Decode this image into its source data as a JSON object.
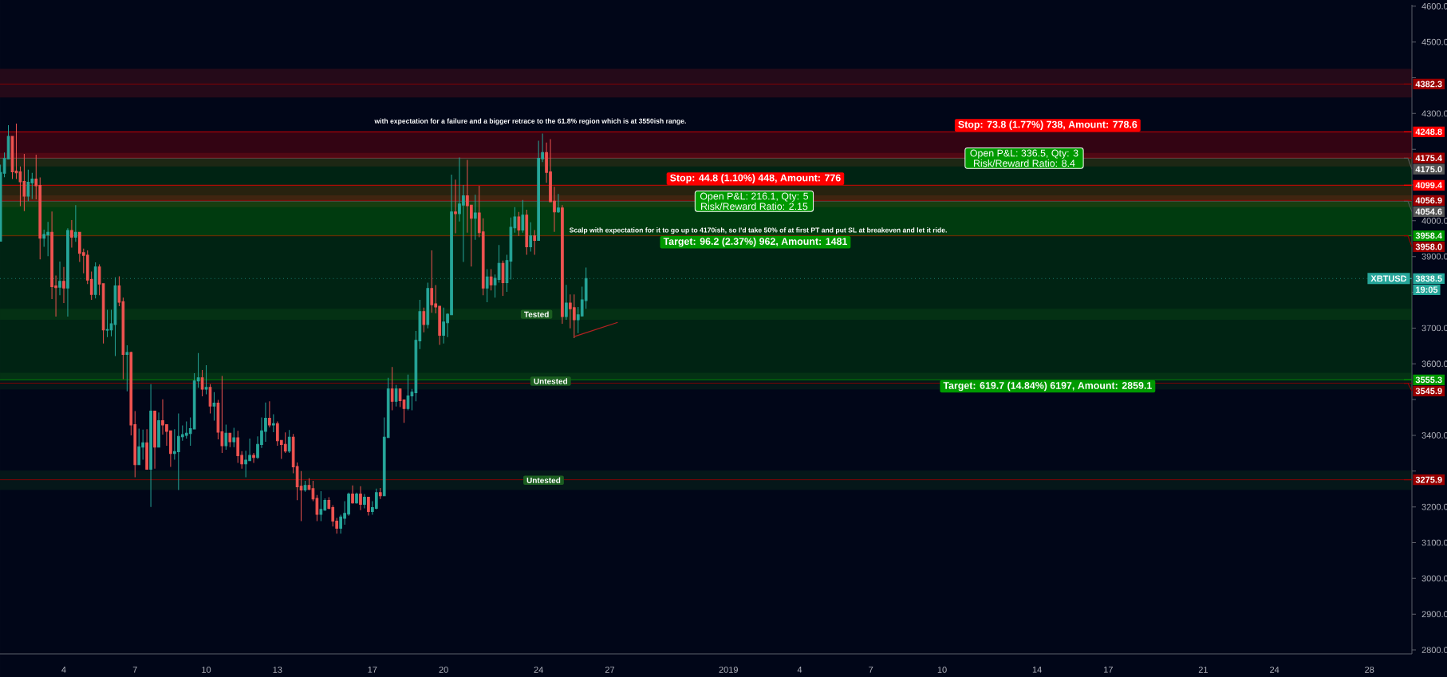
{
  "chart_data": {
    "type": "candlestick",
    "x": [
      "2018-12-01T08:00",
      "2018-12-01T12:00",
      "2018-12-01T16:00",
      "2018-12-01T20:00",
      "2018-12-02T00:00",
      "2018-12-02T04:00",
      "2018-12-02T08:00",
      "2018-12-02T12:00",
      "2018-12-02T16:00",
      "2018-12-02T20:00",
      "2018-12-03T00:00",
      "2018-12-03T04:00",
      "2018-12-03T08:00",
      "2018-12-03T12:00",
      "2018-12-03T16:00",
      "2018-12-03T20:00",
      "2018-12-04T00:00",
      "2018-12-04T04:00",
      "2018-12-04T08:00",
      "2018-12-04T12:00",
      "2018-12-04T16:00",
      "2018-12-04T20:00",
      "2018-12-05T00:00",
      "2018-12-05T04:00",
      "2018-12-05T08:00",
      "2018-12-05T12:00",
      "2018-12-05T16:00",
      "2018-12-05T20:00",
      "2018-12-06T00:00",
      "2018-12-06T04:00",
      "2018-12-06T08:00",
      "2018-12-06T12:00",
      "2018-12-06T16:00",
      "2018-12-06T20:00",
      "2018-12-07T00:00",
      "2018-12-07T04:00",
      "2018-12-07T08:00",
      "2018-12-07T12:00",
      "2018-12-07T16:00",
      "2018-12-07T20:00",
      "2018-12-08T00:00",
      "2018-12-08T04:00",
      "2018-12-08T08:00",
      "2018-12-08T12:00",
      "2018-12-08T16:00",
      "2018-12-08T20:00",
      "2018-12-09T00:00",
      "2018-12-09T04:00",
      "2018-12-09T08:00",
      "2018-12-09T12:00",
      "2018-12-09T16:00",
      "2018-12-09T20:00",
      "2018-12-10T00:00",
      "2018-12-10T04:00",
      "2018-12-10T08:00",
      "2018-12-10T12:00",
      "2018-12-10T16:00",
      "2018-12-10T20:00",
      "2018-12-11T00:00",
      "2018-12-11T04:00",
      "2018-12-11T08:00",
      "2018-12-11T12:00",
      "2018-12-11T16:00",
      "2018-12-11T20:00",
      "2018-12-12T00:00",
      "2018-12-12T04:00",
      "2018-12-12T08:00",
      "2018-12-12T12:00",
      "2018-12-12T16:00",
      "2018-12-12T20:00",
      "2018-12-13T00:00",
      "2018-12-13T04:00",
      "2018-12-13T08:00",
      "2018-12-13T12:00",
      "2018-12-13T16:00",
      "2018-12-13T20:00",
      "2018-12-14T00:00",
      "2018-12-14T04:00",
      "2018-12-14T08:00",
      "2018-12-14T12:00",
      "2018-12-14T16:00",
      "2018-12-14T20:00",
      "2018-12-15T00:00",
      "2018-12-15T04:00",
      "2018-12-15T08:00",
      "2018-12-15T12:00",
      "2018-12-15T16:00",
      "2018-12-15T20:00",
      "2018-12-16T00:00",
      "2018-12-16T04:00",
      "2018-12-16T08:00",
      "2018-12-16T12:00",
      "2018-12-16T16:00",
      "2018-12-16T20:00",
      "2018-12-17T00:00",
      "2018-12-17T04:00",
      "2018-12-17T08:00",
      "2018-12-17T12:00",
      "2018-12-17T16:00",
      "2018-12-17T20:00",
      "2018-12-18T00:00",
      "2018-12-18T04:00",
      "2018-12-18T08:00",
      "2018-12-18T12:00",
      "2018-12-18T16:00",
      "2018-12-18T20:00",
      "2018-12-19T00:00",
      "2018-12-19T04:00",
      "2018-12-19T08:00",
      "2018-12-19T12:00",
      "2018-12-19T16:00",
      "2018-12-19T20:00",
      "2018-12-20T00:00",
      "2018-12-20T04:00",
      "2018-12-20T08:00",
      "2018-12-20T12:00",
      "2018-12-20T16:00",
      "2018-12-20T20:00",
      "2018-12-21T00:00",
      "2018-12-21T04:00",
      "2018-12-21T08:00",
      "2018-12-21T12:00",
      "2018-12-21T16:00",
      "2018-12-21T20:00",
      "2018-12-22T00:00",
      "2018-12-22T04:00",
      "2018-12-22T08:00",
      "2018-12-22T12:00",
      "2018-12-22T16:00",
      "2018-12-22T20:00",
      "2018-12-23T00:00",
      "2018-12-23T04:00",
      "2018-12-23T08:00",
      "2018-12-23T12:00",
      "2018-12-23T16:00",
      "2018-12-23T20:00",
      "2018-12-24T00:00",
      "2018-12-24T04:00",
      "2018-12-24T08:00",
      "2018-12-24T12:00",
      "2018-12-24T16:00",
      "2018-12-24T20:00",
      "2018-12-25T00:00",
      "2018-12-25T04:00",
      "2018-12-25T08:00",
      "2018-12-25T12:00",
      "2018-12-25T16:00",
      "2018-12-25T20:00",
      "2018-12-26T00:00"
    ],
    "series": [
      {
        "name": "XBTUSD",
        "ohlc": [
          [
            3943,
            4157,
            3943,
            4135
          ],
          [
            4133,
            4191,
            4122,
            4174
          ],
          [
            4173,
            4267,
            4173,
            4236
          ],
          [
            4236,
            4236,
            4117,
            4137
          ],
          [
            4139,
            4272,
            4117,
            4134
          ],
          [
            4137,
            4152,
            4041,
            4109
          ],
          [
            4110,
            4187,
            4027,
            4069
          ],
          [
            4069,
            4143,
            4055,
            4108
          ],
          [
            4106,
            4134,
            4061,
            4117
          ],
          [
            4117,
            4185,
            4060,
            4098
          ],
          [
            4099,
            4121,
            3892,
            3951
          ],
          [
            3951,
            3975,
            3927,
            3962
          ],
          [
            3960,
            3997,
            3901,
            3968
          ],
          [
            3968,
            4026,
            3781,
            3816
          ],
          [
            3818,
            3847,
            3732,
            3813
          ],
          [
            3814,
            3886,
            3792,
            3831
          ],
          [
            3831,
            3871,
            3770,
            3812
          ],
          [
            3812,
            3979,
            3732,
            3973
          ],
          [
            3973,
            4002,
            3925,
            3954
          ],
          [
            3954,
            4044,
            3941,
            3968
          ],
          [
            3968,
            3968,
            3885,
            3909
          ],
          [
            3911,
            3922,
            3853,
            3903
          ],
          [
            3904,
            3917,
            3823,
            3834
          ],
          [
            3836,
            3858,
            3779,
            3794
          ],
          [
            3794,
            3884,
            3783,
            3871
          ],
          [
            3871,
            3878,
            3792,
            3823
          ],
          [
            3824,
            3824,
            3657,
            3695
          ],
          [
            3694,
            3751,
            3675,
            3696
          ],
          [
            3695,
            3751,
            3677,
            3712
          ],
          [
            3710,
            3842,
            3622,
            3818
          ],
          [
            3818,
            3845,
            3761,
            3772
          ],
          [
            3774,
            3785,
            3557,
            3626
          ],
          [
            3626,
            3652,
            3523,
            3632
          ],
          [
            3632,
            3634,
            3400,
            3429
          ],
          [
            3430,
            3468,
            3283,
            3318
          ],
          [
            3318,
            3419,
            3318,
            3368
          ],
          [
            3367,
            3416,
            3332,
            3379
          ],
          [
            3379,
            3417,
            3305,
            3305
          ],
          [
            3305,
            3543,
            3200,
            3468
          ],
          [
            3468,
            3468,
            3307,
            3367
          ],
          [
            3367,
            3464,
            3367,
            3441
          ],
          [
            3441,
            3501,
            3402,
            3429
          ],
          [
            3430,
            3430,
            3371,
            3411
          ],
          [
            3413,
            3413,
            3312,
            3349
          ],
          [
            3349,
            3417,
            3332,
            3355
          ],
          [
            3354,
            3461,
            3247,
            3397
          ],
          [
            3396,
            3428,
            3385,
            3402
          ],
          [
            3400,
            3439,
            3391,
            3406
          ],
          [
            3405,
            3450,
            3371,
            3419
          ],
          [
            3418,
            3574,
            3418,
            3552
          ],
          [
            3552,
            3630,
            3533,
            3561
          ],
          [
            3561,
            3583,
            3509,
            3529
          ],
          [
            3529,
            3596,
            3515,
            3534
          ],
          [
            3534,
            3543,
            3461,
            3482
          ],
          [
            3482,
            3521,
            3441,
            3490
          ],
          [
            3490,
            3499,
            3389,
            3409
          ],
          [
            3410,
            3566,
            3351,
            3371
          ],
          [
            3371,
            3430,
            3360,
            3406
          ],
          [
            3406,
            3406,
            3367,
            3382
          ],
          [
            3382,
            3421,
            3367,
            3393
          ],
          [
            3393,
            3413,
            3323,
            3343
          ],
          [
            3344,
            3356,
            3307,
            3320
          ],
          [
            3320,
            3357,
            3283,
            3331
          ],
          [
            3329,
            3391,
            3329,
            3344
          ],
          [
            3344,
            3351,
            3323,
            3338
          ],
          [
            3338,
            3397,
            3334,
            3375
          ],
          [
            3374,
            3450,
            3365,
            3413
          ],
          [
            3411,
            3492,
            3382,
            3448
          ],
          [
            3448,
            3495,
            3422,
            3429
          ],
          [
            3429,
            3459,
            3409,
            3433
          ],
          [
            3433,
            3439,
            3371,
            3385
          ],
          [
            3386,
            3386,
            3334,
            3374
          ],
          [
            3375,
            3408,
            3351,
            3356
          ],
          [
            3356,
            3415,
            3351,
            3395
          ],
          [
            3395,
            3404,
            3294,
            3312
          ],
          [
            3313,
            3324,
            3219,
            3256
          ],
          [
            3258,
            3300,
            3160,
            3247
          ],
          [
            3247,
            3273,
            3242,
            3260
          ],
          [
            3260,
            3280,
            3247,
            3249
          ],
          [
            3251,
            3273,
            3216,
            3222
          ],
          [
            3224,
            3233,
            3160,
            3179
          ],
          [
            3179,
            3244,
            3160,
            3193
          ],
          [
            3191,
            3224,
            3189,
            3218
          ],
          [
            3218,
            3227,
            3193,
            3196
          ],
          [
            3198,
            3205,
            3145,
            3160
          ],
          [
            3160,
            3169,
            3125,
            3140
          ],
          [
            3140,
            3178,
            3125,
            3172
          ],
          [
            3168,
            3216,
            3150,
            3182
          ],
          [
            3180,
            3240,
            3175,
            3236
          ],
          [
            3236,
            3260,
            3209,
            3211
          ],
          [
            3211,
            3240,
            3209,
            3236
          ],
          [
            3236,
            3258,
            3191,
            3207
          ],
          [
            3207,
            3236,
            3196,
            3227
          ],
          [
            3227,
            3227,
            3176,
            3187
          ],
          [
            3187,
            3216,
            3178,
            3198
          ],
          [
            3196,
            3251,
            3193,
            3240
          ],
          [
            3240,
            3253,
            3222,
            3231
          ],
          [
            3231,
            3450,
            3231,
            3395
          ],
          [
            3394,
            3561,
            3394,
            3530
          ],
          [
            3530,
            3591,
            3470,
            3495
          ],
          [
            3495,
            3541,
            3481,
            3530
          ],
          [
            3530,
            3530,
            3479,
            3497
          ],
          [
            3499,
            3499,
            3435,
            3475
          ],
          [
            3475,
            3570,
            3470,
            3510
          ],
          [
            3510,
            3530,
            3470,
            3521
          ],
          [
            3519,
            3692,
            3495,
            3666
          ],
          [
            3664,
            3779,
            3641,
            3746
          ],
          [
            3746,
            3757,
            3688,
            3710
          ],
          [
            3710,
            3827,
            3699,
            3811
          ],
          [
            3811,
            3917,
            3743,
            3765
          ],
          [
            3768,
            3820,
            3741,
            3759
          ],
          [
            3761,
            3761,
            3653,
            3680
          ],
          [
            3680,
            3757,
            3657,
            3717
          ],
          [
            3715,
            3741,
            3675,
            3739
          ],
          [
            3737,
            4129,
            3737,
            4025
          ],
          [
            4025,
            4115,
            3965,
            4020
          ],
          [
            4020,
            4177,
            3998,
            4047
          ],
          [
            4044,
            4100,
            3885,
            4070
          ],
          [
            4070,
            4170,
            3967,
            4042
          ],
          [
            4044,
            4044,
            3872,
            4007
          ],
          [
            4007,
            4073,
            3947,
            4022
          ],
          [
            4022,
            4098,
            3954,
            3967
          ],
          [
            3969,
            4007,
            3792,
            3812
          ],
          [
            3812,
            3865,
            3772,
            3843
          ],
          [
            3843,
            3865,
            3805,
            3821
          ],
          [
            3821,
            3850,
            3785,
            3839
          ],
          [
            3836,
            3932,
            3827,
            3881
          ],
          [
            3881,
            3889,
            3790,
            3827
          ],
          [
            3827,
            3905,
            3801,
            3889
          ],
          [
            3887,
            4009,
            3836,
            3982
          ],
          [
            3980,
            4038,
            3967,
            4011
          ],
          [
            4011,
            4025,
            3958,
            3974
          ],
          [
            3974,
            4058,
            3967,
            4016
          ],
          [
            4016,
            4031,
            3905,
            3927
          ],
          [
            3927,
            3996,
            3914,
            3958
          ],
          [
            3958,
            3974,
            3905,
            3945
          ],
          [
            3945,
            4224,
            3945,
            4175
          ],
          [
            4173,
            4244,
            4164,
            4191
          ],
          [
            4191,
            4219,
            4106,
            4135
          ],
          [
            4137,
            4228,
            4053,
            4053
          ],
          [
            4055,
            4095,
            3969,
            4025
          ],
          [
            4025,
            4075,
            4022,
            4036
          ],
          [
            4036,
            4044,
            3712,
            3732
          ],
          [
            3732,
            3821,
            3723,
            3770
          ],
          [
            3770,
            3794,
            3699,
            3754
          ],
          [
            3757,
            3794,
            3672,
            3723
          ],
          [
            3723,
            3759,
            3686,
            3737
          ],
          [
            3734,
            3816,
            3732,
            3779
          ],
          [
            3777,
            3869,
            3754,
            3838.5
          ]
        ]
      },
      {
        "type": "line",
        "x": [
          "2018-12-25T12:00",
          "2018-12-27T08:00"
        ],
        "values": [
          3676,
          3716
        ],
        "color": "#b22222"
      }
    ],
    "xlim": [
      "2018-12-01T07:30",
      "2019-01-29T19:00"
    ],
    "ylim": [
      2789,
      4604
    ],
    "legend": "right",
    "xticks": [
      {
        "value": "2018-12-04",
        "label": "4"
      },
      {
        "value": "2018-12-07",
        "label": "7"
      },
      {
        "value": "2018-12-10",
        "label": "10"
      },
      {
        "value": "2018-12-13",
        "label": "13"
      },
      {
        "value": "2018-12-17",
        "label": "17"
      },
      {
        "value": "2018-12-20",
        "label": "20"
      },
      {
        "value": "2018-12-24",
        "label": "24"
      },
      {
        "value": "2018-12-27",
        "label": "27"
      },
      {
        "value": "2019-01-01",
        "label": "2019"
      },
      {
        "value": "2019-01-04",
        "label": "4"
      },
      {
        "value": "2019-01-07",
        "label": "7"
      },
      {
        "value": "2019-01-10",
        "label": "10"
      },
      {
        "value": "2019-01-14",
        "label": "14"
      },
      {
        "value": "2019-01-17",
        "label": "17"
      },
      {
        "value": "2019-01-21",
        "label": "21"
      },
      {
        "value": "2019-01-24",
        "label": "24"
      },
      {
        "value": "2019-01-28",
        "label": "28"
      }
    ],
    "yticks": [
      {
        "value": 2800,
        "label": "2800.0"
      },
      {
        "value": 2900,
        "label": "2900.0"
      },
      {
        "value": 3000,
        "label": "3000.0"
      },
      {
        "value": 3100,
        "label": "3100.0"
      },
      {
        "value": 3200,
        "label": "3200.0"
      },
      {
        "value": 3300,
        "label": null
      },
      {
        "value": 3400,
        "label": "3400.0"
      },
      {
        "value": 3500,
        "label": null
      },
      {
        "value": 3600,
        "label": "3600.0"
      },
      {
        "value": 3700,
        "label": "3700.0"
      },
      {
        "value": 3800,
        "label": null
      },
      {
        "value": 3900,
        "label": "3900.0"
      },
      {
        "value": 4000,
        "label": "4000.0"
      },
      {
        "value": 4100,
        "label": null
      },
      {
        "value": 4200,
        "label": null
      },
      {
        "value": 4300,
        "label": "4300.0"
      },
      {
        "value": 4400,
        "label": null
      },
      {
        "value": 4500,
        "label": "4500.0"
      },
      {
        "value": 4600,
        "label": "4600.0"
      }
    ],
    "ref_lines": [
      {
        "axis": "y",
        "value": 4382.3,
        "label": "4382.3",
        "color": "#990000"
      },
      {
        "axis": "y",
        "value": 4248.8,
        "label": "4248.8",
        "color": "#ff0000"
      },
      {
        "axis": "y",
        "value": 4175.4,
        "label": "4175.4",
        "color": "#990000"
      },
      {
        "axis": "y",
        "value": 4175.0,
        "label": "4175.0",
        "color": "#555555"
      },
      {
        "axis": "y",
        "value": 4099.4,
        "label": "4099.4",
        "color": "#ff0000"
      },
      {
        "axis": "y",
        "value": 4056.9,
        "label": "4056.9",
        "color": "#990000"
      },
      {
        "axis": "y",
        "value": 4054.6,
        "label": "4054.6",
        "color": "#555555"
      },
      {
        "axis": "y",
        "value": 3958.4,
        "label": "3958.4",
        "color": "#009900"
      },
      {
        "axis": "y",
        "value": 3958.0,
        "label": "3958.0",
        "color": "#990000"
      },
      {
        "axis": "y",
        "value": 3838.5,
        "label": "3838.5",
        "color": "#26a69a",
        "line_style": "dotted"
      },
      {
        "axis": "y",
        "value": 3555.3,
        "label": "3555.3",
        "color": "#009900"
      },
      {
        "axis": "y",
        "value": 3545.9,
        "label": "3545.9",
        "color": "#990000"
      },
      {
        "axis": "y",
        "value": 3275.9,
        "label": "3275.9",
        "color": "#990000"
      }
    ],
    "bands": [
      {
        "axis": "y",
        "from": 4345,
        "to": 4425,
        "color": "#b71c1c"
      },
      {
        "axis": "y",
        "from": 4152,
        "to": 4190,
        "color": "#b71c1c"
      },
      {
        "axis": "y",
        "from": 4038,
        "to": 4071,
        "color": "#b71c1c"
      },
      {
        "axis": "y",
        "from": 3723,
        "to": 3754,
        "label": "Tested",
        "color": "#1b5e20"
      },
      {
        "axis": "y",
        "from": 3528,
        "to": 3575,
        "label": "Untested",
        "color": "#1b5e20"
      },
      {
        "axis": "y",
        "from": 3247,
        "to": 3302,
        "label": "Untested",
        "color": "#1b5e20"
      },
      {
        "axis": "y",
        "from": 4054.6,
        "to": 4099.4,
        "label": "Stop: 44.8 (1.10%) 448, Amount: 776",
        "color": "#ff0000"
      },
      {
        "axis": "y",
        "from": 3958.4,
        "to": 4054.6,
        "label": "Target: 96.2 (2.37%) 962, Amount: 1481",
        "color": "#009900"
      },
      {
        "axis": "y",
        "from": 4175.0,
        "to": 4248.8,
        "label": "Stop: 73.8 (1.77%) 738, Amount: 778.6",
        "color": "#ff0000"
      },
      {
        "axis": "y",
        "from": 3555.3,
        "to": 4175.0,
        "label": "Target: 619.7 (14.84%) 6197, Amount: 2859.1",
        "color": "#009900"
      }
    ],
    "annotations": [
      "with expectation for a failure and a bigger retrace to the 61.8% region which is at 3550ish range.",
      "Scalp with expectation for it to go up to 4170ish, so I'd take 50% of at first PT and put SL at breakeven and let it ride.",
      "19:05",
      {
        "text": "Open P&L: 216.1, Qty: 5",
        "x": "2019-01-02T02:00",
        "y": 4054.6
      },
      {
        "text": "Risk/Reward Ratio: 2.15",
        "x": "2019-01-02T02:00",
        "y": 4054.6
      },
      {
        "text": "Open P&L: 336.5, Qty: 3",
        "x": "2019-01-13T11:00",
        "y": 4175.0
      },
      {
        "text": "Risk/Reward Ratio: 8.4",
        "x": "2019-01-13T11:00",
        "y": 4175.0
      }
    ]
  }
}
